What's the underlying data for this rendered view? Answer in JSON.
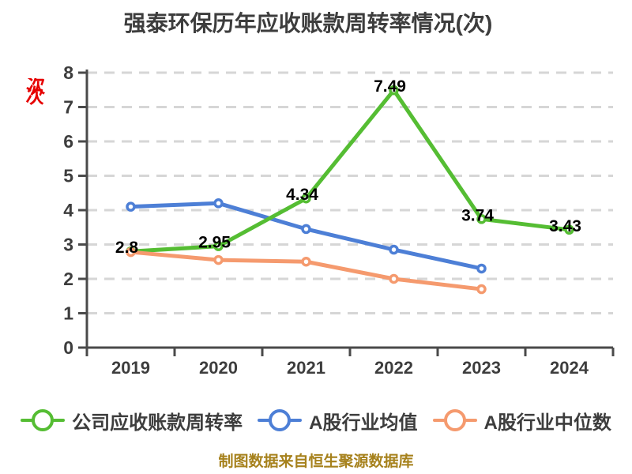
{
  "chart_data": {
    "type": "line",
    "title": "强泰环保历年应收账款周转率情况(次)",
    "xlabel": "",
    "ylabel": "",
    "categories": [
      "2019",
      "2020",
      "2021",
      "2022",
      "2023",
      "2024"
    ],
    "series": [
      {
        "name": "公司应收账款周转率",
        "color": "#55bd33",
        "values": [
          2.8,
          2.95,
          4.34,
          7.49,
          3.74,
          3.43
        ],
        "point_labels": [
          "2.8",
          "2.95",
          "4.34",
          "7.49",
          "3.74",
          "3.43"
        ]
      },
      {
        "name": "A股行业均值",
        "color": "#4d7fd6",
        "values": [
          4.1,
          4.2,
          3.45,
          2.85,
          2.3,
          null
        ],
        "point_labels": []
      },
      {
        "name": "A股行业中位数",
        "color": "#f59a6e",
        "values": [
          2.78,
          2.55,
          2.5,
          2.0,
          1.7,
          null
        ],
        "point_labels": []
      }
    ],
    "ylim": [
      0,
      8
    ],
    "y_ticks": [
      0,
      1,
      2,
      3,
      4,
      5,
      6,
      7,
      8
    ],
    "grid": "horizontal-dashed",
    "legend_position": "bottom"
  },
  "legend": {
    "items": [
      {
        "label": "公司应收账款周转率",
        "color": "#55bd33"
      },
      {
        "label": "A股行业均值",
        "color": "#4d7fd6"
      },
      {
        "label": "A股行业中位数",
        "color": "#f59a6e"
      }
    ]
  },
  "watermark": {
    "text": "次",
    "color": "#e60000"
  },
  "footer": {
    "text": "制图数据来自恒生聚源数据库",
    "color": "#a6811c"
  },
  "colors": {
    "grid": "#d6d6d6",
    "axis": "#4a4a4a",
    "tick_label": "#3d3d3d",
    "title": "#3d3d3d",
    "value_label": "#000000"
  }
}
